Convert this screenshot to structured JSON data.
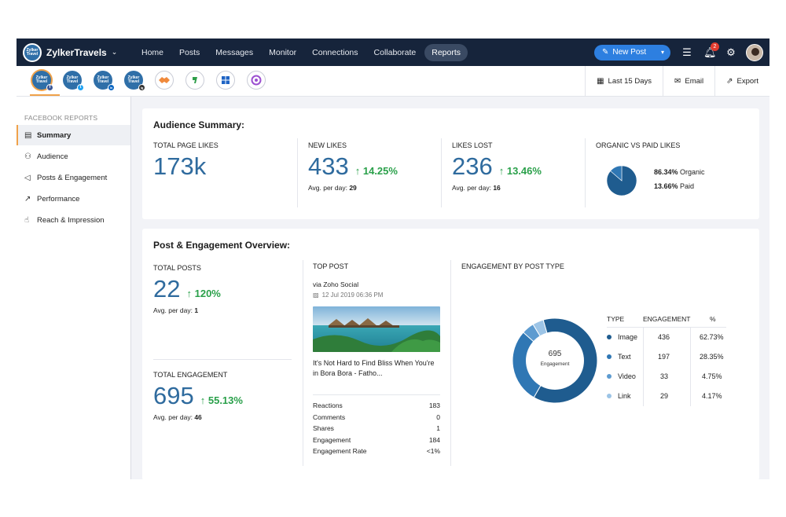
{
  "app": {
    "brand": {
      "name": "ZylkerTravels",
      "logo_text": "Zylker Travel"
    },
    "nav": [
      "Home",
      "Posts",
      "Messages",
      "Monitor",
      "Connections",
      "Collaborate",
      "Reports"
    ],
    "active_nav": "Reports",
    "new_post_label": "New Post",
    "notification_count": "2"
  },
  "toolbar": {
    "profiles": [
      {
        "text": "Zylker Travel",
        "network": "f"
      },
      {
        "text": "Zylker Travel",
        "network": "t"
      },
      {
        "text": "Zylker Travel",
        "network": "in"
      },
      {
        "text": "Zylker Travel",
        "network": "ig"
      }
    ],
    "range_label": "Last 15 Days",
    "email_label": "Email",
    "export_label": "Export"
  },
  "sidebar": {
    "title": "FACEBOOK REPORTS",
    "items": [
      {
        "label": "Summary",
        "icon": "summary-icon"
      },
      {
        "label": "Audience",
        "icon": "audience-icon"
      },
      {
        "label": "Posts & Engagement",
        "icon": "megaphone-icon"
      },
      {
        "label": "Performance",
        "icon": "trend-icon"
      },
      {
        "label": "Reach & Impression",
        "icon": "thumbs-up-icon"
      }
    ]
  },
  "audience": {
    "title": "Audience Summary:",
    "total_page_likes": {
      "label": "TOTAL PAGE LIKES",
      "value": "173k"
    },
    "new_likes": {
      "label": "NEW LIKES",
      "value": "433",
      "delta": "14.25%",
      "sub_label": "Avg. per day:",
      "sub_value": "29"
    },
    "likes_lost": {
      "label": "LIKES LOST",
      "value": "236",
      "delta": "13.46%",
      "sub_label": "Avg. per day:",
      "sub_value": "16"
    },
    "organic_paid": {
      "label": "ORGANIC VS PAID LIKES",
      "organic_value": "86.34%",
      "organic_label": "Organic",
      "paid_value": "13.66%",
      "paid_label": "Paid",
      "organic_fraction": 0.8634,
      "colors": {
        "organic": "#1f5c8f",
        "paid": "#2f77b4"
      }
    }
  },
  "overview": {
    "title": "Post & Engagement Overview:",
    "total_posts": {
      "label": "TOTAL POSTS",
      "value": "22",
      "delta": "120%",
      "sub_label": "Avg. per day:",
      "sub_value": "1"
    },
    "total_engagement": {
      "label": "TOTAL ENGAGEMENT",
      "value": "695",
      "delta": "55.13%",
      "sub_label": "Avg. per day:",
      "sub_value": "46"
    },
    "top_post": {
      "label": "TOP POST",
      "via": "via Zoho Social",
      "date": "12 Jul 2019 06:36 PM",
      "title": "It's Not Hard to Find Bliss When You're in Bora Bora - Fatho...",
      "stats": [
        {
          "label": "Reactions",
          "value": "183"
        },
        {
          "label": "Comments",
          "value": "0"
        },
        {
          "label": "Shares",
          "value": "1"
        },
        {
          "label": "Engagement",
          "value": "184"
        },
        {
          "label": "Engagement Rate",
          "value": "<1%"
        }
      ]
    },
    "engagement_by_type": {
      "label": "ENGAGEMENT BY POST TYPE",
      "center_value": "695",
      "center_label": "Engagement",
      "headers": {
        "type": "TYPE",
        "engagement": "ENGAGEMENT",
        "pct": "%"
      },
      "rows": [
        {
          "type": "Image",
          "engagement": "436",
          "pct": "62.73%",
          "value": 436,
          "color": "#1f5c8f"
        },
        {
          "type": "Text",
          "engagement": "197",
          "pct": "28.35%",
          "value": 197,
          "color": "#2f77b4"
        },
        {
          "type": "Video",
          "engagement": "33",
          "pct": "4.75%",
          "value": 33,
          "color": "#5d9bd0"
        },
        {
          "type": "Link",
          "engagement": "29",
          "pct": "4.17%",
          "value": 29,
          "color": "#9cc4e6"
        }
      ]
    }
  }
}
